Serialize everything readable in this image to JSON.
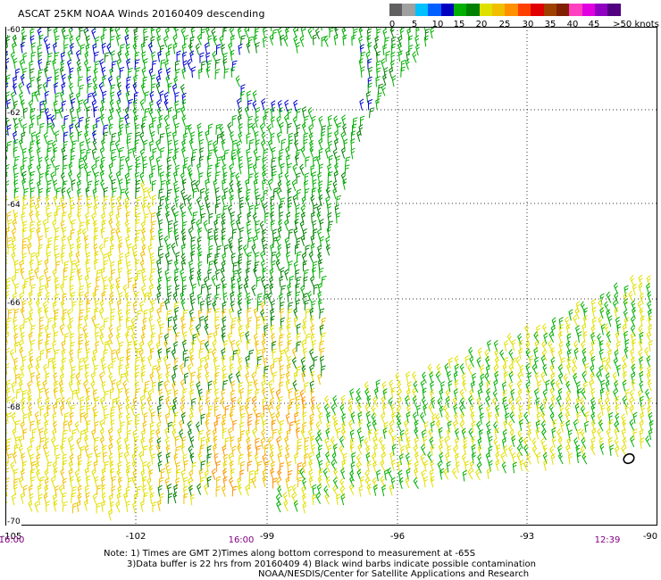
{
  "title": "ASCAT 25KM NOAA Winds 20160409 descending",
  "scale": {
    "colors": [
      "#606060",
      "#a0a0a0",
      "#00c0ff",
      "#0060ff",
      "#0000c0",
      "#00b000",
      "#008000",
      "#e0e000",
      "#f0c000",
      "#ff9000",
      "#ff4000",
      "#e00000",
      "#a04000",
      "#802000",
      "#ff40c0",
      "#e000e0",
      "#9000c0",
      "#500080"
    ],
    "labels": [
      "0",
      "5",
      "10",
      "15",
      "20",
      "25",
      "30",
      "35",
      "40",
      "45",
      ">50 knots"
    ]
  },
  "lat_labels": [
    "-60",
    "-62",
    "-64",
    "-66",
    "-68",
    "-70"
  ],
  "lon_labels": [
    "-102",
    "-99",
    "-96",
    "-93",
    "-90"
  ],
  "corner_lon_label": "-105",
  "times": [
    "16:00",
    "16:00",
    "12:39"
  ],
  "notes": [
    "Note: 1) Times are GMT 2)Times along bottom correspond to measurement at -65S",
    "3)Data buffer is 22 hrs from 20160409 4) Black wind barbs indicate possible contamination",
    "NOAA/NESDIS/Center for Satellite Applications and Research"
  ]
}
